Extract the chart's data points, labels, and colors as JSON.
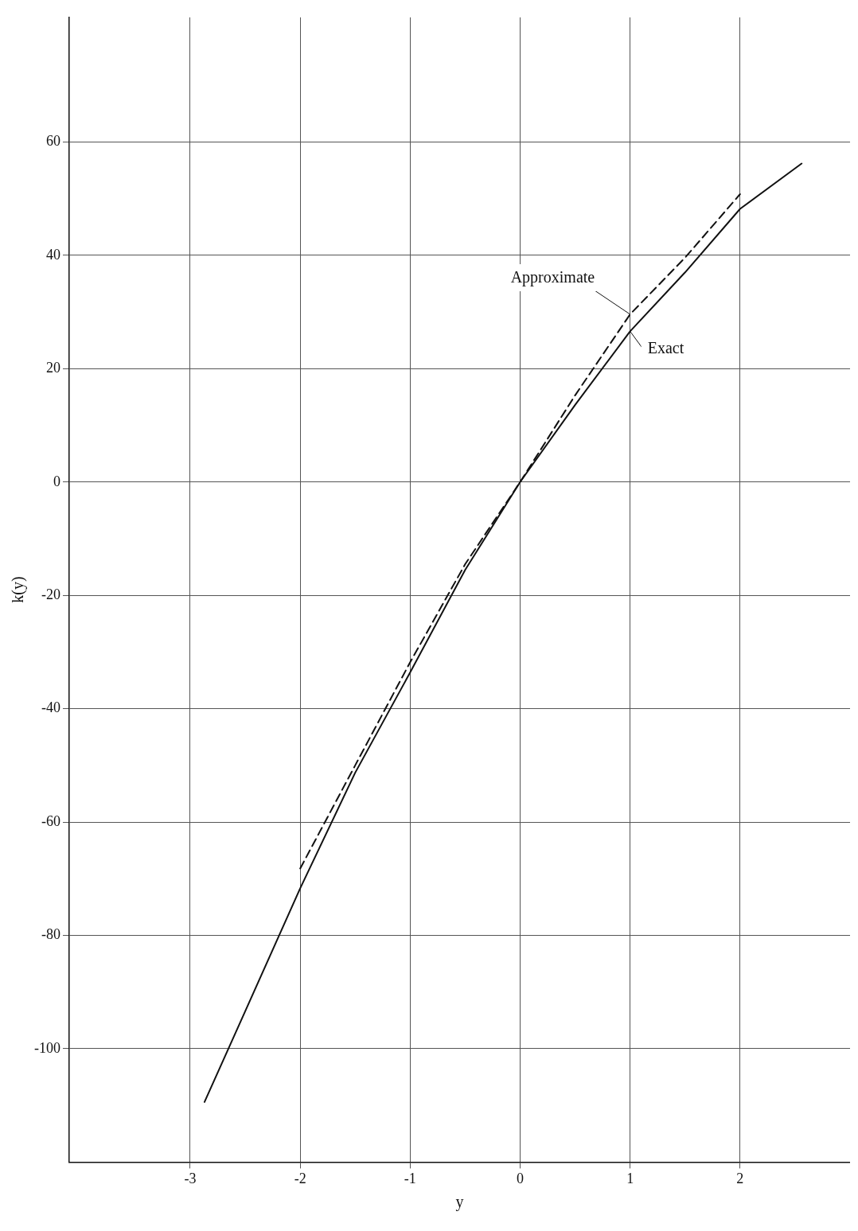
{
  "chart_data": {
    "type": "line",
    "xlabel": "y",
    "ylabel": "k(y)",
    "xlim": [
      -4.1,
      3.0
    ],
    "ylim": [
      -120,
      82
    ],
    "xticks": [
      -3,
      -2,
      -1,
      0,
      1,
      2
    ],
    "yticks": [
      -100,
      -80,
      -60,
      -40,
      -20,
      0,
      20,
      40,
      60
    ],
    "grid": true,
    "series": [
      {
        "name": "Exact",
        "color": "#111111",
        "line_style": "solid",
        "x": [
          -2.87,
          -2.5,
          -2,
          -1.5,
          -1,
          -0.5,
          0,
          0.5,
          1,
          1.5,
          2,
          2.56
        ],
        "values": [
          -109.4,
          -93.4,
          -71.7,
          -51.3,
          -33.6,
          -15.5,
          0,
          13.6,
          26.6,
          37.0,
          48.2,
          56.2
        ]
      },
      {
        "name": "Approximate",
        "color": "#111111",
        "line_style": "dashed",
        "x": [
          -2,
          -1.5,
          -1,
          -0.5,
          0,
          0.5,
          1,
          1.5,
          2
        ],
        "values": [
          -68.2,
          -50,
          -31.8,
          -14.5,
          0,
          15.3,
          29.6,
          39.6,
          50.8
        ]
      }
    ]
  }
}
